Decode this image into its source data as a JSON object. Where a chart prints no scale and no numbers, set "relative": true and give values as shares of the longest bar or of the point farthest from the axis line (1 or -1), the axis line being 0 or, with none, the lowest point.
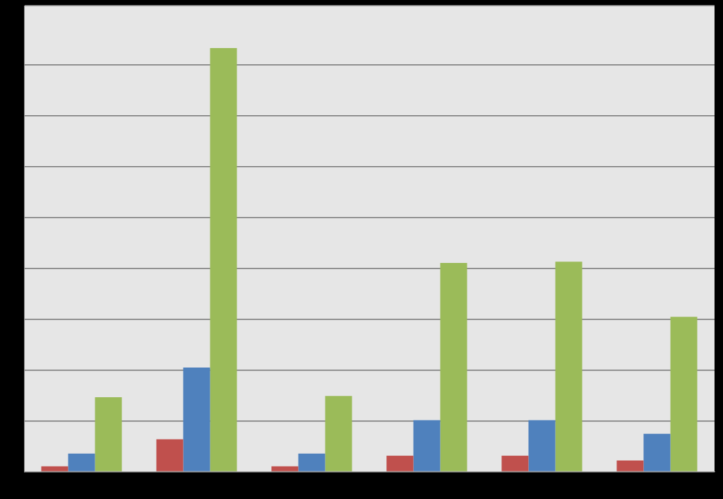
{
  "chart_data": {
    "type": "bar",
    "relative": true,
    "grid": "y",
    "categories": [
      null,
      null,
      null,
      null,
      null,
      null
    ],
    "series": [
      {
        "color": "#c0504d",
        "values": [
          0.013,
          0.077,
          0.013,
          0.038,
          0.038,
          0.027
        ]
      },
      {
        "color": "#4f81bd",
        "values": [
          0.043,
          0.246,
          0.043,
          0.122,
          0.122,
          0.09
        ]
      },
      {
        "color": "#9bbb59",
        "values": [
          0.176,
          1,
          0.179,
          0.493,
          0.496,
          0.366
        ]
      }
    ]
  }
}
